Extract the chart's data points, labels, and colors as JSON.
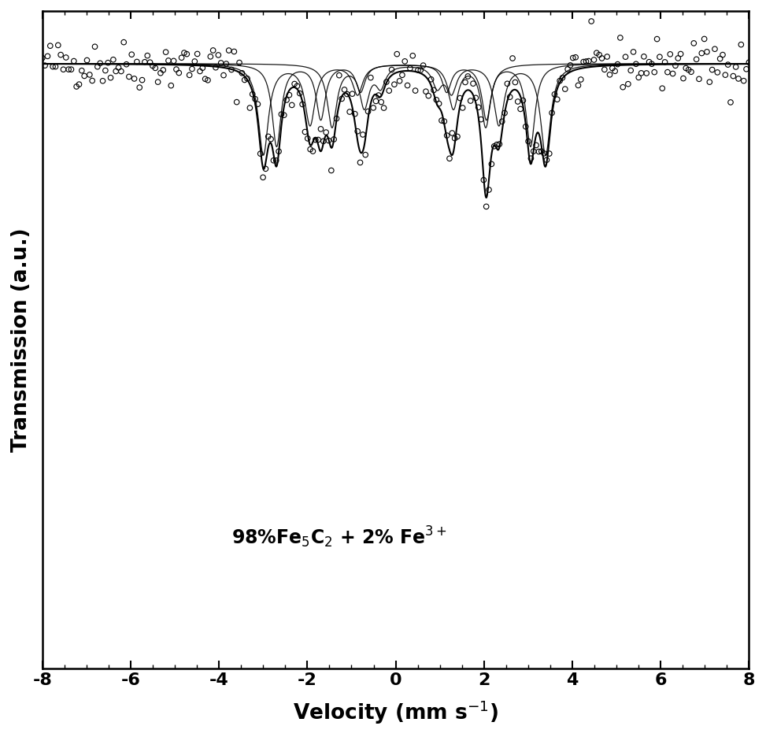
{
  "xlabel": "Velocity (mm s⁻¹)",
  "ylabel": "Transmission (a.u.)",
  "xlim": [
    -8,
    8
  ],
  "ylim_display": [
    0.08,
    1.08
  ],
  "annotation": "98%Fe$_5$C$_2$ + 2% Fe$^{3+}$",
  "background_color": "#ffffff",
  "line_color": "#000000",
  "scatter_facecolor": "none",
  "scatter_edgecolor": "#000000",
  "scatter_size": 22,
  "scatter_lw": 0.8,
  "linewidth_total": 1.5,
  "linewidth_component": 0.9,
  "sites": [
    {
      "IS": 0.2,
      "Bhf_mms": 3.2,
      "QS": -0.01,
      "gamma": 0.28,
      "depth": 0.55
    },
    {
      "IS": 0.18,
      "Bhf_mms": 2.85,
      "QS": 0.05,
      "gamma": 0.25,
      "depth": 0.5
    },
    {
      "IS": 0.3,
      "Bhf_mms": 1.65,
      "QS": 0.18,
      "gamma": 0.26,
      "depth": 0.38
    }
  ],
  "noise_seed": 42,
  "noise_level": 0.018,
  "n_scatter": 270,
  "xticks": [
    -8,
    -6,
    -4,
    -2,
    0,
    2,
    4,
    6,
    8
  ]
}
